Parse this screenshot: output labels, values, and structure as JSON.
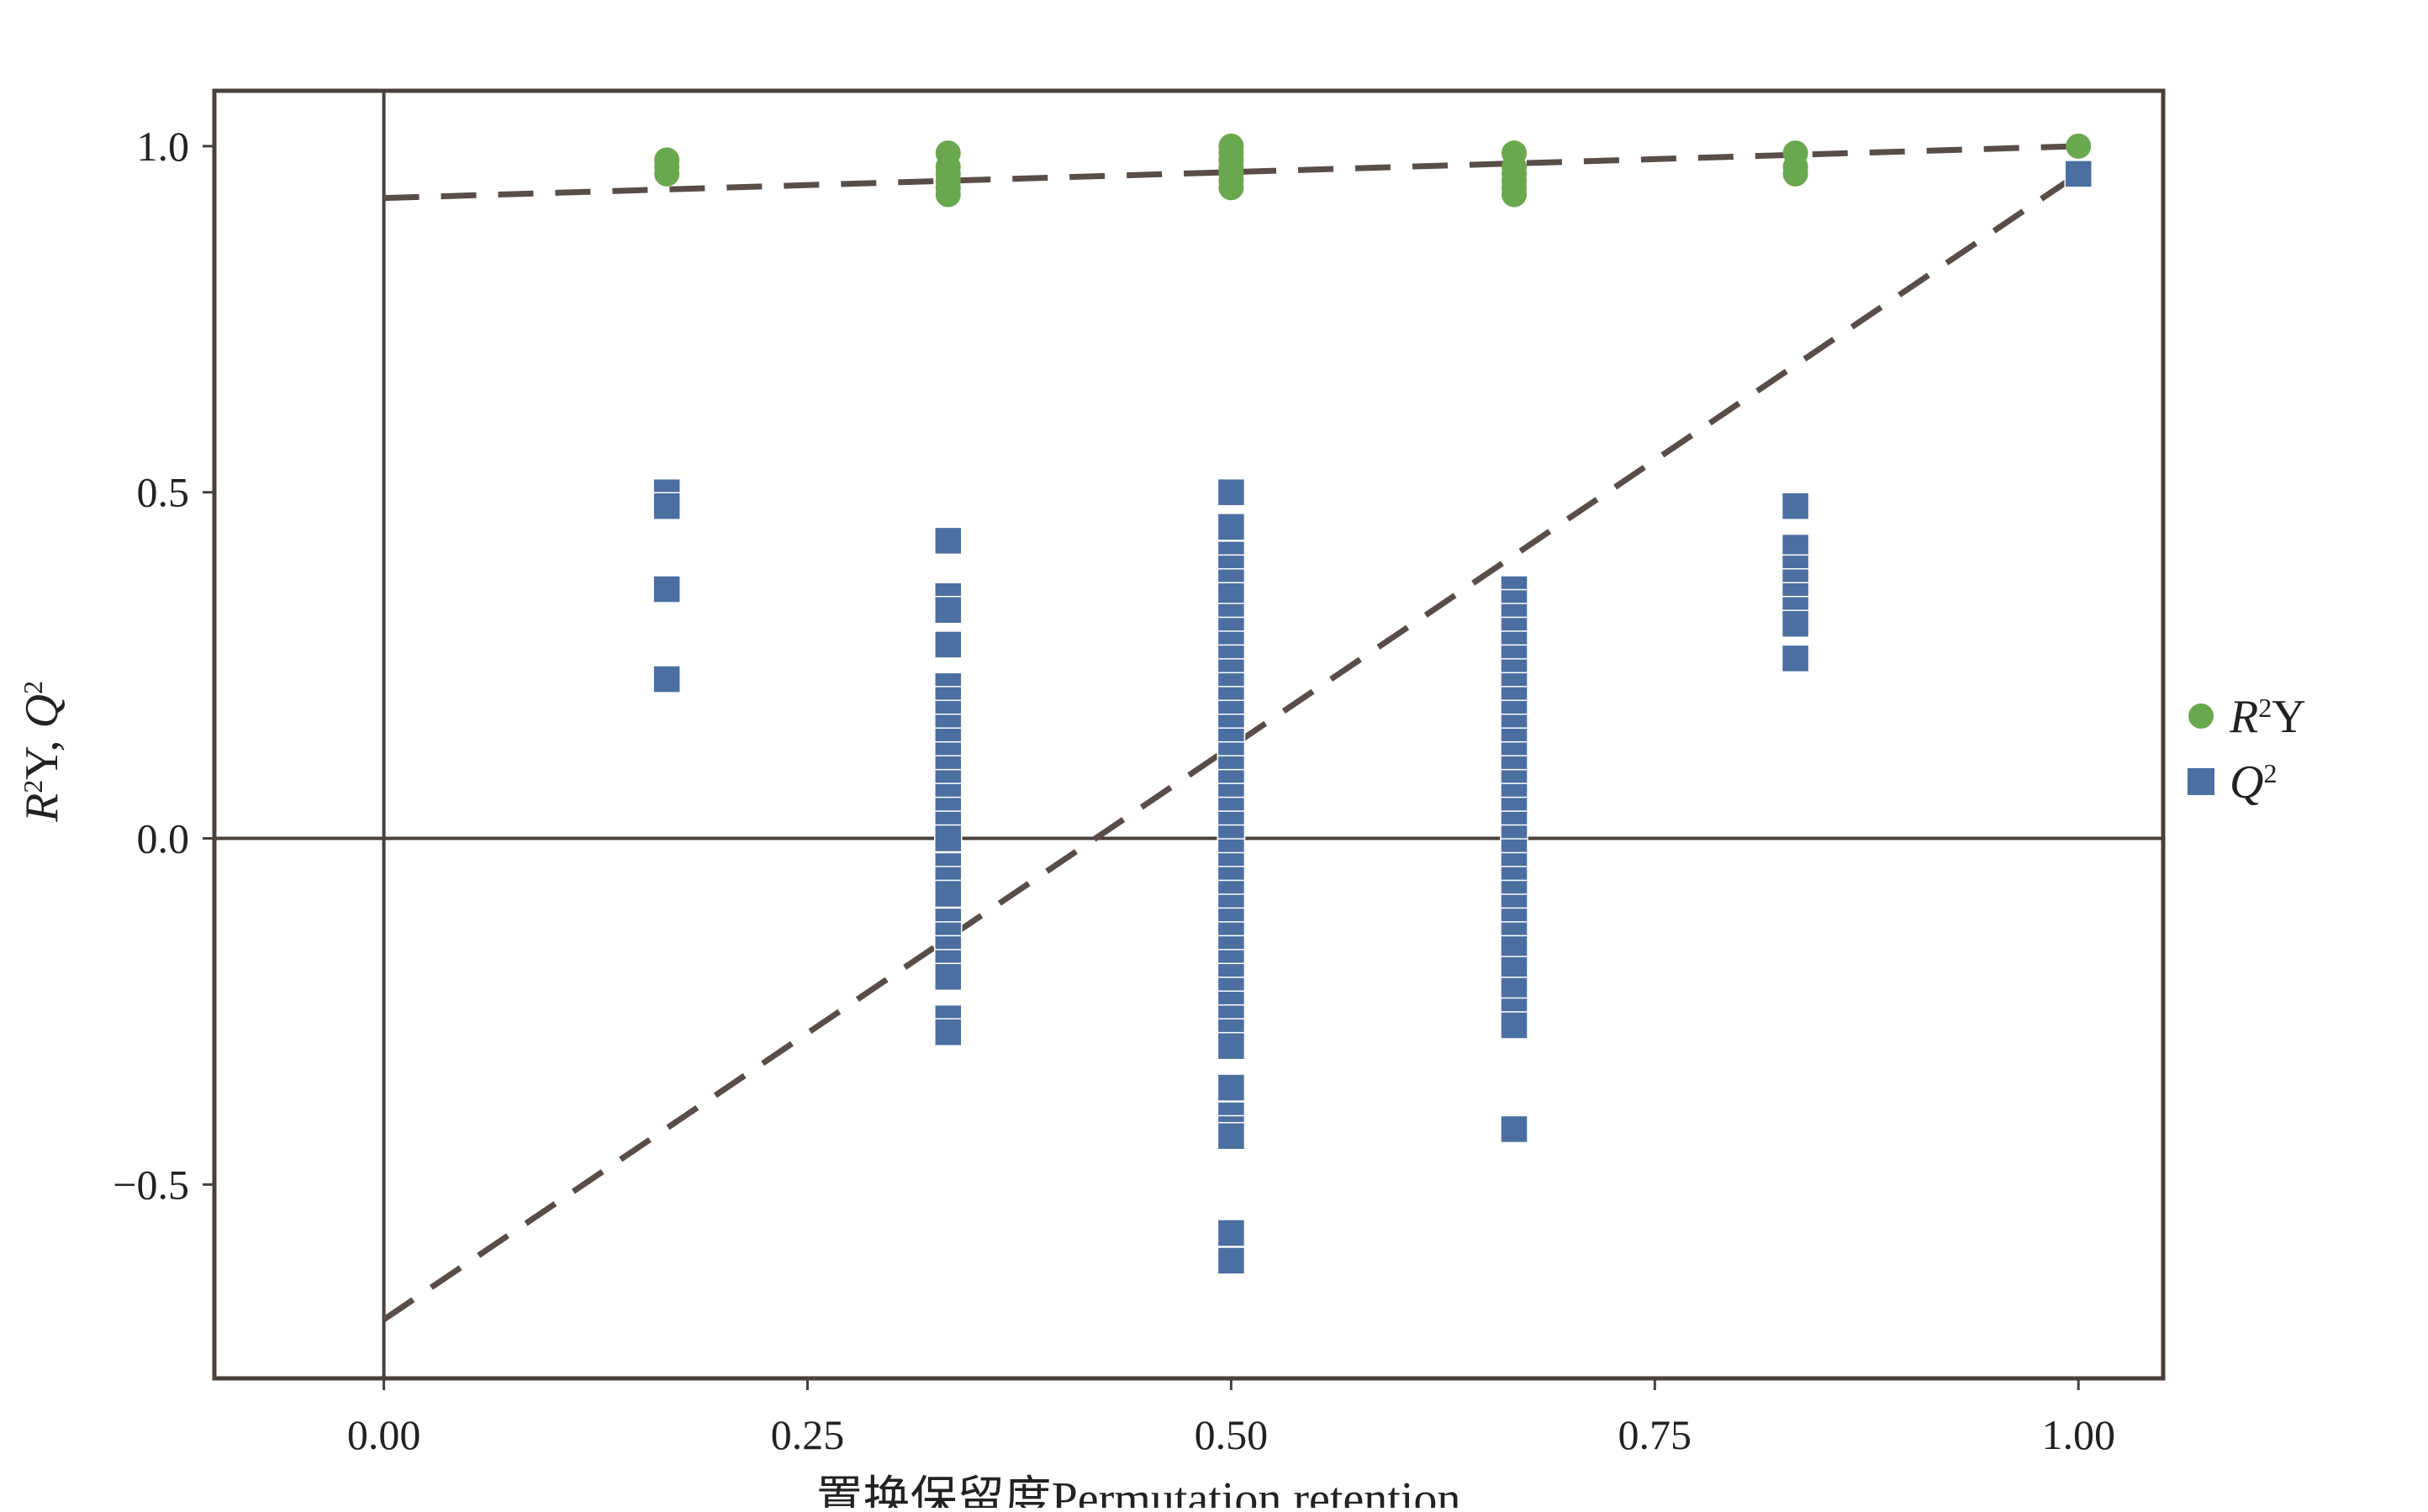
{
  "chart_data": {
    "type": "scatter",
    "xlabel": "置换保留度Permutation retention",
    "ylabel": {
      "parts": [
        {
          "text": "R",
          "italic": true
        },
        {
          "text": "2",
          "sup": true
        },
        {
          "text": "Y, "
        },
        {
          "text": "Q",
          "italic": true
        },
        {
          "text": "2",
          "sup": true
        }
      ]
    },
    "xlim": [
      -0.1,
      1.05
    ],
    "ylim": [
      -0.78,
      1.08
    ],
    "xticks": [
      0.0,
      0.25,
      0.5,
      0.75,
      1.0
    ],
    "xtick_labels": [
      "0.00",
      "0.25",
      "0.50",
      "0.75",
      "1.00"
    ],
    "yticks": [
      -0.5,
      0.0,
      0.5,
      1.0
    ],
    "ytick_labels": [
      "−0.5",
      "0.0",
      "0.5",
      "1.0"
    ],
    "grid": false,
    "reference_lines": [
      {
        "axis": "x",
        "value": 0.0
      },
      {
        "axis": "y",
        "value": 0.0
      }
    ],
    "legend_position": "right",
    "series": [
      {
        "name": "R2Y",
        "legend_parts": [
          {
            "text": "R",
            "italic": true
          },
          {
            "text": "2",
            "sup": true
          },
          {
            "text": "Y",
            "italic": false
          }
        ],
        "marker": "circle",
        "color": "#6aa84f",
        "points": [
          [
            0.167,
            0.98
          ],
          [
            0.167,
            0.97
          ],
          [
            0.167,
            0.96
          ],
          [
            0.333,
            0.99
          ],
          [
            0.333,
            0.97
          ],
          [
            0.333,
            0.96
          ],
          [
            0.333,
            0.95
          ],
          [
            0.333,
            0.94
          ],
          [
            0.333,
            0.93
          ],
          [
            0.5,
            1.0
          ],
          [
            0.5,
            0.99
          ],
          [
            0.5,
            0.98
          ],
          [
            0.5,
            0.97
          ],
          [
            0.5,
            0.96
          ],
          [
            0.5,
            0.95
          ],
          [
            0.5,
            0.94
          ],
          [
            0.667,
            0.99
          ],
          [
            0.667,
            0.97
          ],
          [
            0.667,
            0.96
          ],
          [
            0.667,
            0.95
          ],
          [
            0.667,
            0.94
          ],
          [
            0.667,
            0.93
          ],
          [
            0.833,
            0.99
          ],
          [
            0.833,
            0.97
          ],
          [
            0.833,
            0.96
          ],
          [
            1.0,
            1.0
          ]
        ],
        "regression_line": {
          "intercept": 0.925,
          "slope": 0.075
        }
      },
      {
        "name": "Q2",
        "legend_parts": [
          {
            "text": "Q",
            "italic": true
          },
          {
            "text": "2",
            "sup": true
          }
        ],
        "marker": "square",
        "color": "#4a6fa0",
        "points": [
          [
            0.167,
            0.5
          ],
          [
            0.167,
            0.48
          ],
          [
            0.167,
            0.36
          ],
          [
            0.167,
            0.23
          ],
          [
            0.333,
            0.43
          ],
          [
            0.333,
            0.35
          ],
          [
            0.333,
            0.33
          ],
          [
            0.333,
            0.28
          ],
          [
            0.333,
            0.22
          ],
          [
            0.333,
            0.2
          ],
          [
            0.333,
            0.18
          ],
          [
            0.333,
            0.16
          ],
          [
            0.333,
            0.14
          ],
          [
            0.333,
            0.12
          ],
          [
            0.333,
            0.1
          ],
          [
            0.333,
            0.08
          ],
          [
            0.333,
            0.06
          ],
          [
            0.333,
            0.04
          ],
          [
            0.333,
            0.02
          ],
          [
            0.333,
            0.0
          ],
          [
            0.333,
            -0.04
          ],
          [
            0.333,
            -0.06
          ],
          [
            0.333,
            -0.08
          ],
          [
            0.333,
            -0.12
          ],
          [
            0.333,
            -0.14
          ],
          [
            0.333,
            -0.16
          ],
          [
            0.333,
            -0.18
          ],
          [
            0.333,
            -0.2
          ],
          [
            0.333,
            -0.26
          ],
          [
            0.333,
            -0.28
          ],
          [
            0.5,
            0.5
          ],
          [
            0.5,
            0.45
          ],
          [
            0.5,
            0.41
          ],
          [
            0.5,
            0.39
          ],
          [
            0.5,
            0.37
          ],
          [
            0.5,
            0.35
          ],
          [
            0.5,
            0.32
          ],
          [
            0.5,
            0.3
          ],
          [
            0.5,
            0.28
          ],
          [
            0.5,
            0.26
          ],
          [
            0.5,
            0.24
          ],
          [
            0.5,
            0.22
          ],
          [
            0.5,
            0.2
          ],
          [
            0.5,
            0.18
          ],
          [
            0.5,
            0.16
          ],
          [
            0.5,
            0.14
          ],
          [
            0.5,
            0.12
          ],
          [
            0.5,
            0.1
          ],
          [
            0.5,
            0.08
          ],
          [
            0.5,
            0.06
          ],
          [
            0.5,
            0.04
          ],
          [
            0.5,
            0.02
          ],
          [
            0.5,
            0.0
          ],
          [
            0.5,
            -0.02
          ],
          [
            0.5,
            -0.04
          ],
          [
            0.5,
            -0.06
          ],
          [
            0.5,
            -0.08
          ],
          [
            0.5,
            -0.1
          ],
          [
            0.5,
            -0.12
          ],
          [
            0.5,
            -0.14
          ],
          [
            0.5,
            -0.16
          ],
          [
            0.5,
            -0.18
          ],
          [
            0.5,
            -0.2
          ],
          [
            0.5,
            -0.22
          ],
          [
            0.5,
            -0.24
          ],
          [
            0.5,
            -0.26
          ],
          [
            0.5,
            -0.28
          ],
          [
            0.5,
            -0.3
          ],
          [
            0.5,
            -0.36
          ],
          [
            0.5,
            -0.4
          ],
          [
            0.5,
            -0.42
          ],
          [
            0.5,
            -0.43
          ],
          [
            0.5,
            -0.57
          ],
          [
            0.5,
            -0.61
          ],
          [
            0.667,
            0.36
          ],
          [
            0.667,
            0.34
          ],
          [
            0.667,
            0.32
          ],
          [
            0.667,
            0.3
          ],
          [
            0.667,
            0.28
          ],
          [
            0.667,
            0.26
          ],
          [
            0.667,
            0.24
          ],
          [
            0.667,
            0.22
          ],
          [
            0.667,
            0.2
          ],
          [
            0.667,
            0.18
          ],
          [
            0.667,
            0.16
          ],
          [
            0.667,
            0.14
          ],
          [
            0.667,
            0.12
          ],
          [
            0.667,
            0.1
          ],
          [
            0.667,
            0.08
          ],
          [
            0.667,
            0.06
          ],
          [
            0.667,
            0.04
          ],
          [
            0.667,
            0.02
          ],
          [
            0.667,
            0.0
          ],
          [
            0.667,
            -0.02
          ],
          [
            0.667,
            -0.04
          ],
          [
            0.667,
            -0.06
          ],
          [
            0.667,
            -0.08
          ],
          [
            0.667,
            -0.1
          ],
          [
            0.667,
            -0.12
          ],
          [
            0.667,
            -0.14
          ],
          [
            0.667,
            -0.16
          ],
          [
            0.667,
            -0.19
          ],
          [
            0.667,
            -0.22
          ],
          [
            0.667,
            -0.25
          ],
          [
            0.667,
            -0.27
          ],
          [
            0.667,
            -0.42
          ],
          [
            0.833,
            0.48
          ],
          [
            0.833,
            0.42
          ],
          [
            0.833,
            0.39
          ],
          [
            0.833,
            0.37
          ],
          [
            0.833,
            0.35
          ],
          [
            0.833,
            0.33
          ],
          [
            0.833,
            0.31
          ],
          [
            0.833,
            0.26
          ],
          [
            1.0,
            0.96
          ]
        ],
        "regression_line": {
          "intercept": -0.695,
          "slope": 1.655
        }
      }
    ]
  }
}
